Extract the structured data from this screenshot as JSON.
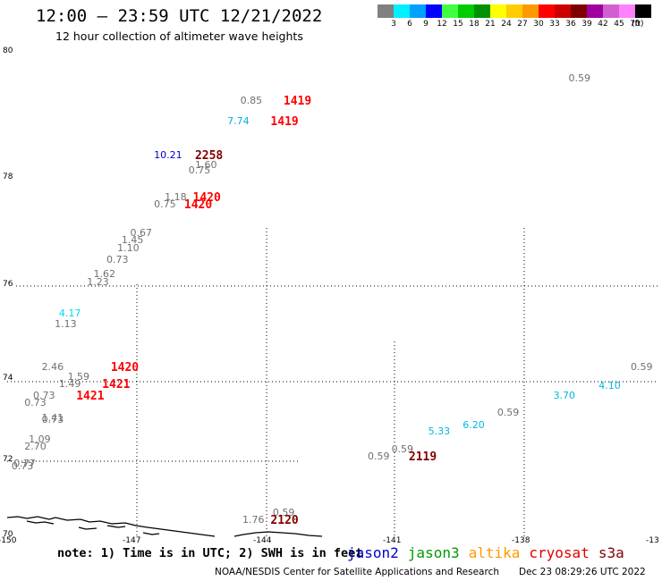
{
  "header": {
    "title": "12:00 – 23:59 UTC 12/21/2022",
    "subtitle": "12 hour collection of altimeter wave heights"
  },
  "colorbar": {
    "labels": [
      "3",
      "6",
      "9",
      "12",
      "15",
      "18",
      "21",
      "24",
      "27",
      "30",
      "33",
      "36",
      "39",
      "42",
      "45",
      "70"
    ],
    "unit": "(ft)",
    "colors": [
      "#808080",
      "#00f0ff",
      "#00a0ff",
      "#0000ff",
      "#40ff40",
      "#00cc00",
      "#009000",
      "#ffff00",
      "#ffcc00",
      "#ff9900",
      "#ff0000",
      "#cc0000",
      "#800000",
      "#a000a0",
      "#d060d0",
      "#ff80ff",
      "#000000"
    ]
  },
  "map": {
    "lon_range": [
      -150,
      -135
    ],
    "lat_range": [
      70,
      80
    ],
    "lon_ticks": [
      "-150",
      "-147",
      "-144",
      "-141",
      "-138",
      "-13"
    ],
    "lat_ticks": [
      "80",
      "78",
      "76",
      "74",
      "72",
      "70"
    ],
    "observations": [
      {
        "text": "0.59",
        "lon": -137.0,
        "lat": 79.4,
        "color": "#707070",
        "kind": "swh"
      },
      {
        "text": "0.85",
        "lon": -144.6,
        "lat": 78.93,
        "color": "#707070",
        "kind": "swh"
      },
      {
        "text": "1419",
        "lon": -143.6,
        "lat": 78.93,
        "color": "#ff0000",
        "kind": "time"
      },
      {
        "text": "7.74",
        "lon": -144.9,
        "lat": 78.5,
        "color": "#00b0e0",
        "kind": "swh"
      },
      {
        "text": "1419",
        "lon": -143.9,
        "lat": 78.5,
        "color": "#ff0000",
        "kind": "time"
      },
      {
        "text": "10.21",
        "lon": -146.6,
        "lat": 77.8,
        "color": "#0000cc",
        "kind": "swh"
      },
      {
        "text": "2258",
        "lon": -145.65,
        "lat": 77.8,
        "color": "#800000",
        "kind": "time"
      },
      {
        "text": "1.60",
        "lon": -145.65,
        "lat": 77.6,
        "color": "#707070",
        "kind": "swh"
      },
      {
        "text": "0.75",
        "lon": -145.8,
        "lat": 77.5,
        "color": "#707070",
        "kind": "swh"
      },
      {
        "text": "1.18",
        "lon": -146.35,
        "lat": 76.95,
        "color": "#707070",
        "kind": "swh"
      },
      {
        "text": "1420",
        "lon": -145.7,
        "lat": 76.95,
        "color": "#ff0000",
        "kind": "time"
      },
      {
        "text": "0.75",
        "lon": -146.6,
        "lat": 76.8,
        "color": "#707070",
        "kind": "swh"
      },
      {
        "text": "1420",
        "lon": -145.9,
        "lat": 76.8,
        "color": "#ff0000",
        "kind": "time"
      },
      {
        "text": "0.67",
        "lon": -147.15,
        "lat": 76.2,
        "color": "#707070",
        "kind": "swh"
      },
      {
        "text": "1.45",
        "lon": -147.35,
        "lat": 76.05,
        "color": "#707070",
        "kind": "swh"
      },
      {
        "text": "1.10",
        "lon": -147.45,
        "lat": 75.9,
        "color": "#707070",
        "kind": "swh"
      },
      {
        "text": "0.73",
        "lon": -147.7,
        "lat": 75.65,
        "color": "#707070",
        "kind": "swh"
      },
      {
        "text": "1.62",
        "lon": -148.0,
        "lat": 75.35,
        "color": "#707070",
        "kind": "swh"
      },
      {
        "text": "1.23",
        "lon": -148.15,
        "lat": 75.2,
        "color": "#707070",
        "kind": "swh"
      },
      {
        "text": "4.17",
        "lon": -148.8,
        "lat": 74.55,
        "color": "#00d8f0",
        "kind": "swh"
      },
      {
        "text": "1.13",
        "lon": -148.9,
        "lat": 74.33,
        "color": "#707070",
        "kind": "swh"
      },
      {
        "text": "2.46",
        "lon": -149.2,
        "lat": 73.45,
        "color": "#707070",
        "kind": "swh"
      },
      {
        "text": "1420",
        "lon": -147.6,
        "lat": 73.45,
        "color": "#ff0000",
        "kind": "time"
      },
      {
        "text": "1.59",
        "lon": -148.6,
        "lat": 73.25,
        "color": "#707070",
        "kind": "swh"
      },
      {
        "text": "1.49",
        "lon": -148.8,
        "lat": 73.1,
        "color": "#707070",
        "kind": "swh"
      },
      {
        "text": "1421",
        "lon": -147.8,
        "lat": 73.1,
        "color": "#ff0000",
        "kind": "time"
      },
      {
        "text": "0.73",
        "lon": -149.4,
        "lat": 72.85,
        "color": "#707070",
        "kind": "swh"
      },
      {
        "text": "1421",
        "lon": -148.4,
        "lat": 72.85,
        "color": "#ff0000",
        "kind": "time"
      },
      {
        "text": "0.73",
        "lon": -149.6,
        "lat": 72.7,
        "color": "#707070",
        "kind": "swh"
      },
      {
        "text": "1.41",
        "lon": -149.2,
        "lat": 72.4,
        "color": "#707070",
        "kind": "swh"
      },
      {
        "text": "0.73",
        "lon": -149.2,
        "lat": 72.35,
        "color": "#707070",
        "kind": "swh"
      },
      {
        "text": "1.09",
        "lon": -149.5,
        "lat": 71.95,
        "color": "#707070",
        "kind": "swh"
      },
      {
        "text": "2.70",
        "lon": -149.6,
        "lat": 71.8,
        "color": "#707070",
        "kind": "swh"
      },
      {
        "text": "0.77",
        "lon": -149.85,
        "lat": 71.45,
        "color": "#707070",
        "kind": "swh"
      },
      {
        "text": "0.73",
        "lon": -149.9,
        "lat": 71.4,
        "color": "#707070",
        "kind": "swh"
      },
      {
        "text": "0.59",
        "lon": -135.55,
        "lat": 73.45,
        "color": "#707070",
        "kind": "swh"
      },
      {
        "text": "4.10",
        "lon": -136.3,
        "lat": 73.05,
        "color": "#00b8e0",
        "kind": "swh"
      },
      {
        "text": "3.70",
        "lon": -137.35,
        "lat": 72.85,
        "color": "#00b8e0",
        "kind": "swh"
      },
      {
        "text": "0.59",
        "lon": -138.65,
        "lat": 72.5,
        "color": "#707070",
        "kind": "swh"
      },
      {
        "text": "6.20",
        "lon": -139.45,
        "lat": 72.25,
        "color": "#00b8e0",
        "kind": "swh"
      },
      {
        "text": "5.33",
        "lon": -140.25,
        "lat": 72.12,
        "color": "#00b8e0",
        "kind": "swh"
      },
      {
        "text": "0.59",
        "lon": -141.1,
        "lat": 71.75,
        "color": "#707070",
        "kind": "swh"
      },
      {
        "text": "0.59",
        "lon": -141.65,
        "lat": 71.6,
        "color": "#707070",
        "kind": "swh"
      },
      {
        "text": "2119",
        "lon": -140.7,
        "lat": 71.6,
        "color": "#800000",
        "kind": "time"
      },
      {
        "text": "0.59",
        "lon": -143.85,
        "lat": 70.45,
        "color": "#707070",
        "kind": "swh"
      },
      {
        "text": "1.76",
        "lon": -144.55,
        "lat": 70.3,
        "color": "#707070",
        "kind": "swh"
      },
      {
        "text": "2120",
        "lon": -143.9,
        "lat": 70.3,
        "color": "#800000",
        "kind": "time"
      }
    ]
  },
  "legend": {
    "note": "note: 1) Time is in UTC; 2) SWH is in feet",
    "satellites": [
      {
        "name": "jason2",
        "color": "#0000cc"
      },
      {
        "name": "jason3",
        "color": "#009900"
      },
      {
        "name": "altika",
        "color": "#ff9900"
      },
      {
        "name": "cryosat",
        "color": "#e00000"
      },
      {
        "name": "s3a",
        "color": "#800000"
      }
    ]
  },
  "footer": {
    "credit": "NOAA/NESDIS Center for Satellite Applications and Research",
    "timestamp": "Dec 23 08:29:26 UTC 2022"
  }
}
